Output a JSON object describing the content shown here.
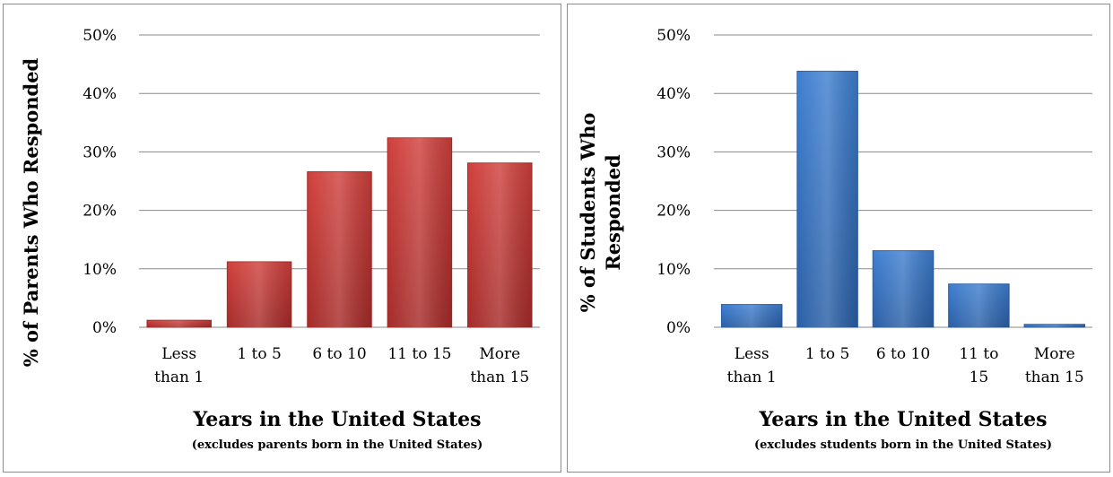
{
  "chart_data": [
    {
      "type": "bar",
      "categories": [
        [
          "Less",
          "than 1"
        ],
        [
          "1 to 5"
        ],
        [
          "6 to 10"
        ],
        [
          "11 to 15"
        ],
        [
          "More",
          "than 15"
        ]
      ],
      "values": [
        1.2,
        11.2,
        26.6,
        32.4,
        28.1
      ],
      "ylabel_lines": [
        "% of Parents Who Responded"
      ],
      "xlabel": "Years in the United States",
      "xlabel_sub": "(excludes parents born in the United States)",
      "ylim": [
        0,
        50
      ],
      "yticks": [
        "0%",
        "10%",
        "20%",
        "30%",
        "40%",
        "50%"
      ],
      "grid": true,
      "bar_color": "#d0403c",
      "bar_color_dark": "#a52b29"
    },
    {
      "type": "bar",
      "categories": [
        [
          "Less",
          "than 1"
        ],
        [
          "1 to 5"
        ],
        [
          "6 to 10"
        ],
        [
          "11 to",
          "15"
        ],
        [
          "More",
          "than 15"
        ]
      ],
      "values": [
        3.9,
        43.8,
        13.1,
        7.4,
        0.5
      ],
      "ylabel_lines": [
        "% of Students Who",
        "Responded"
      ],
      "xlabel": "Years in the United States",
      "xlabel_sub": "(excludes students born in the United States)",
      "ylim": [
        0,
        50
      ],
      "yticks": [
        "0%",
        "10%",
        "20%",
        "30%",
        "40%",
        "50%"
      ],
      "grid": true,
      "bar_color": "#3f7fd0",
      "bar_color_dark": "#2a5fa6"
    }
  ]
}
